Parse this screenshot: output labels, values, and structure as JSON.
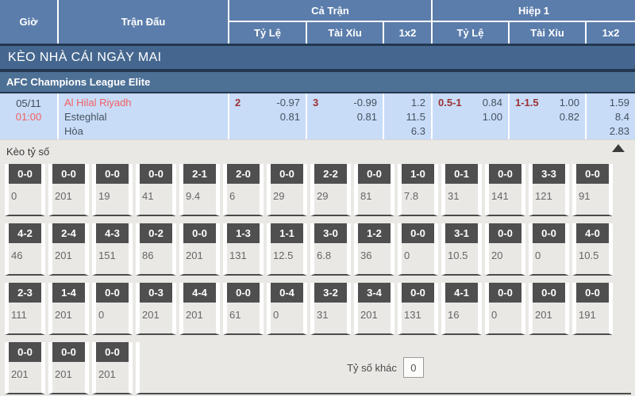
{
  "header": {
    "col_time": "Giờ",
    "col_match": "Trận Đấu",
    "group_full": "Cả Trận",
    "group_half": "Hiệp 1",
    "sub_handicap": "Tỷ Lệ",
    "sub_overunder": "Tài Xỉu",
    "sub_1x2": "1x2"
  },
  "banner": {
    "title": "KÈO NHÀ CÁI NGÀY MAI"
  },
  "league": {
    "name": "AFC Champions League Elite"
  },
  "match": {
    "date": "05/11",
    "time": "01:00",
    "home": "Al Hilal Riyadh",
    "away": "Esteghlal",
    "draw": "Hòa",
    "full": {
      "handicap": {
        "line": "2",
        "odds": [
          "-0.97",
          "0.81"
        ]
      },
      "overunder": {
        "line": "3",
        "odds": [
          "-0.99",
          "0.81"
        ]
      },
      "x12": [
        "1.2",
        "11.5",
        "6.3"
      ]
    },
    "half": {
      "handicap": {
        "line": "0.5-1",
        "odds": [
          "0.84",
          "1.00"
        ]
      },
      "overunder": {
        "line": "1-1.5",
        "odds": [
          "1.00",
          "0.82"
        ]
      },
      "x12": [
        "1.59",
        "8.4",
        "2.83"
      ]
    }
  },
  "score_section": {
    "title": "Kèo tỷ số",
    "other_label": "Tỷ số khác",
    "other_value": "0",
    "rows": [
      [
        {
          "score": "0-0",
          "odds": "0"
        },
        {
          "score": "0-0",
          "odds": "201"
        },
        {
          "score": "0-0",
          "odds": "19"
        },
        {
          "score": "0-0",
          "odds": "41"
        },
        {
          "score": "2-1",
          "odds": "9.4"
        },
        {
          "score": "2-0",
          "odds": "6"
        },
        {
          "score": "0-0",
          "odds": "29"
        },
        {
          "score": "2-2",
          "odds": "29"
        },
        {
          "score": "0-0",
          "odds": "81"
        },
        {
          "score": "1-0",
          "odds": "7.8"
        },
        {
          "score": "0-1",
          "odds": "31"
        },
        {
          "score": "0-0",
          "odds": "141"
        },
        {
          "score": "3-3",
          "odds": "121"
        },
        {
          "score": "0-0",
          "odds": "91"
        }
      ],
      [
        {
          "score": "4-2",
          "odds": "46"
        },
        {
          "score": "2-4",
          "odds": "201"
        },
        {
          "score": "4-3",
          "odds": "151"
        },
        {
          "score": "0-2",
          "odds": "86"
        },
        {
          "score": "0-0",
          "odds": "201"
        },
        {
          "score": "1-3",
          "odds": "131"
        },
        {
          "score": "1-1",
          "odds": "12.5"
        },
        {
          "score": "3-0",
          "odds": "6.8"
        },
        {
          "score": "1-2",
          "odds": "36"
        },
        {
          "score": "0-0",
          "odds": "0"
        },
        {
          "score": "3-1",
          "odds": "10.5"
        },
        {
          "score": "0-0",
          "odds": "20"
        },
        {
          "score": "0-0",
          "odds": "0"
        },
        {
          "score": "4-0",
          "odds": "10.5"
        }
      ],
      [
        {
          "score": "2-3",
          "odds": "111"
        },
        {
          "score": "1-4",
          "odds": "201"
        },
        {
          "score": "0-0",
          "odds": "0"
        },
        {
          "score": "0-3",
          "odds": "201"
        },
        {
          "score": "4-4",
          "odds": "201"
        },
        {
          "score": "0-0",
          "odds": "61"
        },
        {
          "score": "0-4",
          "odds": "0"
        },
        {
          "score": "3-2",
          "odds": "31"
        },
        {
          "score": "3-4",
          "odds": "201"
        },
        {
          "score": "0-0",
          "odds": "131"
        },
        {
          "score": "4-1",
          "odds": "16"
        },
        {
          "score": "0-0",
          "odds": "0"
        },
        {
          "score": "0-0",
          "odds": "201"
        },
        {
          "score": "0-0",
          "odds": "191"
        }
      ],
      [
        {
          "score": "0-0",
          "odds": "201"
        },
        {
          "score": "0-0",
          "odds": "201"
        },
        {
          "score": "0-0",
          "odds": "201"
        }
      ]
    ]
  },
  "colors": {
    "header_blue": "#5b7dab",
    "banner_blue": "#45678f",
    "league_blue": "#4d7095",
    "navy": "#233850",
    "row_light_blue": "#c8dcf8",
    "accent_red": "#f25f5f",
    "handicap_red": "#9c3131",
    "badge_grey": "#4f4f4f",
    "section_grey": "#eae8e5"
  }
}
